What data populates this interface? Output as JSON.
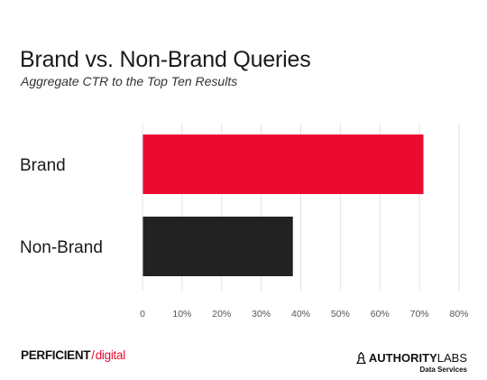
{
  "chart_data": {
    "type": "bar",
    "orientation": "horizontal",
    "title": "Brand vs. Non-Brand Queries",
    "subtitle": "Aggregate CTR to the Top Ten Results",
    "categories": [
      "Brand",
      "Non-Brand"
    ],
    "values": [
      71,
      38
    ],
    "bar_colors": [
      "#ed0a31",
      "#222222"
    ],
    "xlim": [
      0,
      80
    ],
    "x_ticks": [
      0,
      10,
      20,
      30,
      40,
      50,
      60,
      70,
      80
    ],
    "x_tick_labels": [
      "0",
      "10%",
      "20%",
      "30%",
      "40%",
      "50%",
      "60%",
      "70%",
      "80%"
    ],
    "grid": true
  },
  "footer": {
    "left_brand_main": "PERFICIENT",
    "left_brand_slash": "/",
    "left_brand_accent": "digital",
    "right_brand_bold": "AUTHORITY",
    "right_brand_light": "LABS",
    "right_brand_sub": "Data Services",
    "right_icon": "bell-tower-icon"
  }
}
